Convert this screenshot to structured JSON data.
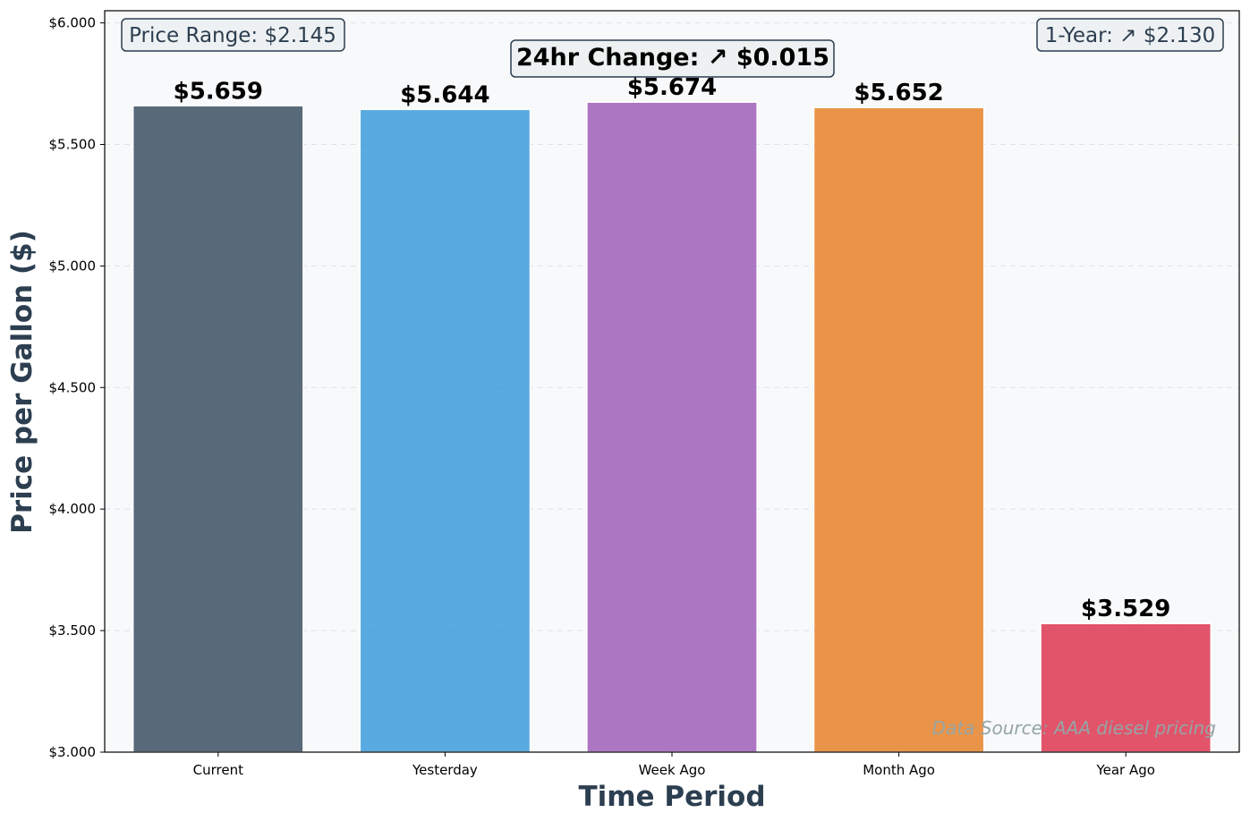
{
  "chart_data": {
    "type": "bar",
    "title": "",
    "xlabel": "Time Period",
    "ylabel": "Price per Gallon ($)",
    "categories": [
      "Current",
      "Yesterday",
      "Week Ago",
      "Month Ago",
      "Year Ago"
    ],
    "values": [
      5.659,
      5.644,
      5.674,
      5.652,
      3.529
    ],
    "value_labels": [
      "$5.659",
      "$5.644",
      "$5.674",
      "$5.652",
      "$3.529"
    ],
    "colors": [
      "#34495e",
      "#3498db",
      "#9b59b6",
      "#e67e22",
      "#dc2f4b"
    ],
    "ylim": [
      3.0,
      6.05
    ],
    "yticks": [
      3.0,
      3.5,
      4.0,
      4.5,
      5.0,
      5.5,
      6.0
    ],
    "ytick_labels": [
      "$3.000",
      "$3.500",
      "$4.000",
      "$4.500",
      "$5.000",
      "$5.500",
      "$6.000"
    ],
    "grid": "horizontal dashed",
    "legend": "none"
  },
  "annotations": {
    "price_range": "Price Range: $2.145",
    "change_24hr": "24hr Change: ↗ $0.015",
    "change_1yr": "1-Year: ↗ $2.130",
    "source": "Data Source: AAA diesel pricing"
  },
  "style": {
    "plot_background": "#f8f9fa",
    "axis_title_color": "#2c3e50",
    "source_color": "#95a5a6"
  }
}
